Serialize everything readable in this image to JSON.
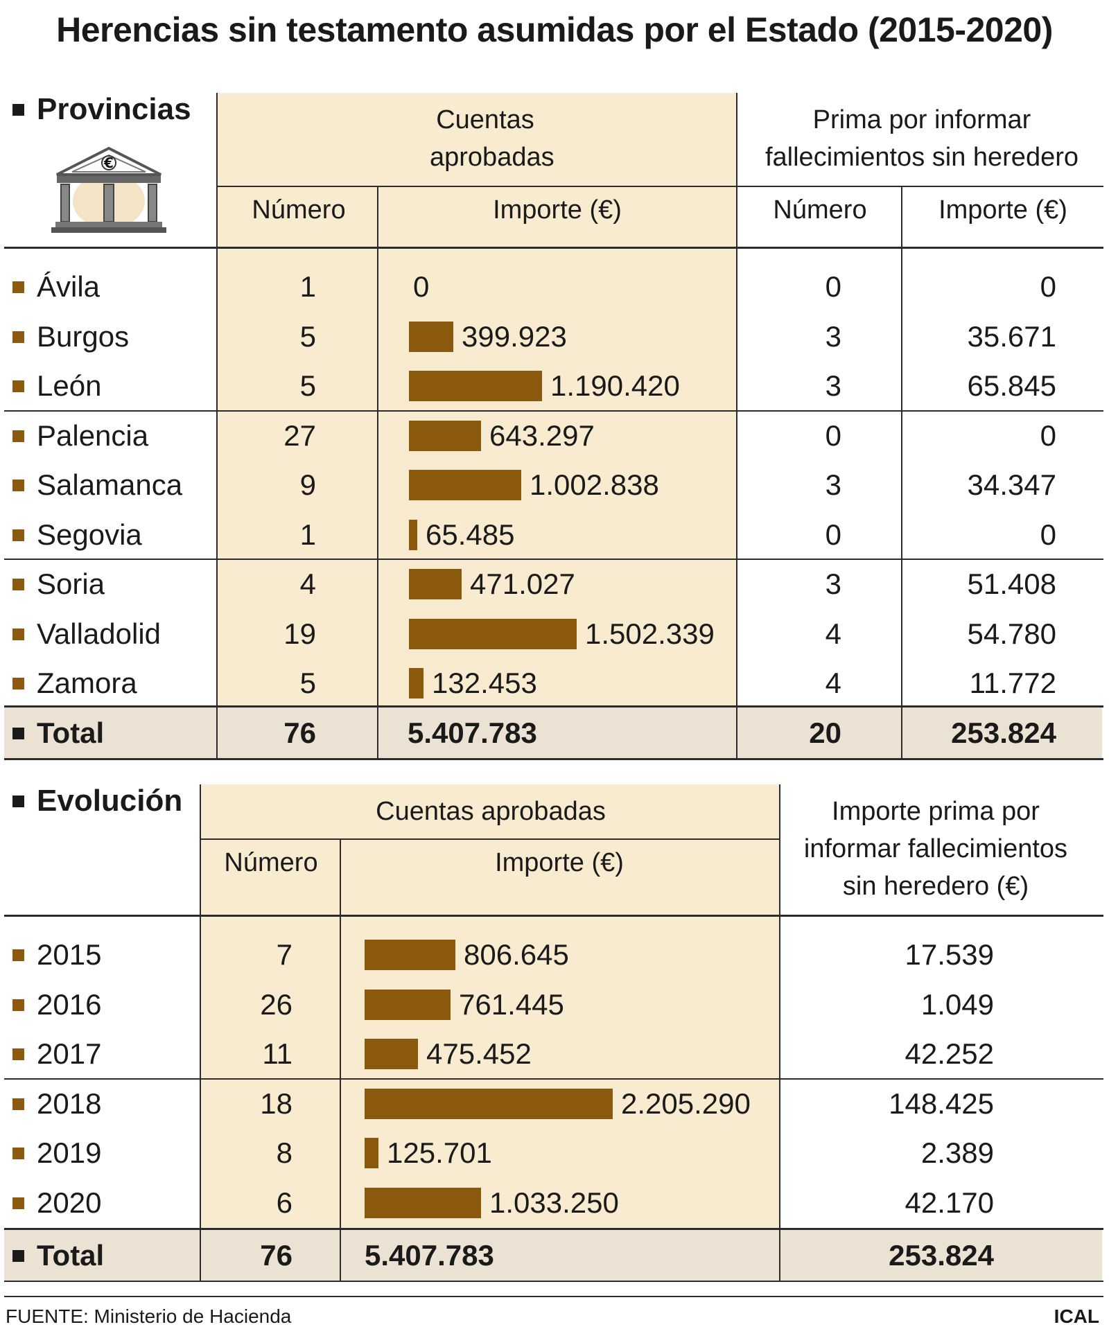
{
  "title": "Herencias sin testamento asumidas por el Estado (2015-2020)",
  "colors": {
    "bar": "#8b5a0f",
    "band": "#f8ebcf",
    "total_band": "#ebe2d3"
  },
  "provincias": {
    "section_label": "Provincias",
    "icon": "bank-euro-icon",
    "group1": "Cuentas aprobadas",
    "group2": "Prima por informar fallecimientos sin heredero",
    "col_numero": "Número",
    "col_importe": "Importe (€)",
    "rows": [
      {
        "name": "Ávila",
        "num": "1",
        "imp": "0",
        "prima_num": "0",
        "prima_imp": "0"
      },
      {
        "name": "Burgos",
        "num": "5",
        "imp": "399.923",
        "prima_num": "3",
        "prima_imp": "35.671"
      },
      {
        "name": "León",
        "num": "5",
        "imp": "1.190.420",
        "prima_num": "3",
        "prima_imp": "65.845"
      },
      {
        "name": "Palencia",
        "num": "27",
        "imp": "643.297",
        "prima_num": "0",
        "prima_imp": "0"
      },
      {
        "name": "Salamanca",
        "num": "9",
        "imp": "1.002.838",
        "prima_num": "3",
        "prima_imp": "34.347"
      },
      {
        "name": "Segovia",
        "num": "1",
        "imp": "65.485",
        "prima_num": "0",
        "prima_imp": "0"
      },
      {
        "name": "Soria",
        "num": "4",
        "imp": "471.027",
        "prima_num": "3",
        "prima_imp": "51.408"
      },
      {
        "name": "Valladolid",
        "num": "19",
        "imp": "1.502.339",
        "prima_num": "4",
        "prima_imp": "54.780"
      },
      {
        "name": "Zamora",
        "num": "5",
        "imp": "132.453",
        "prima_num": "4",
        "prima_imp": "11.772"
      }
    ],
    "total": {
      "label": "Total",
      "num": "76",
      "imp": "5.407.783",
      "prima_num": "20",
      "prima_imp": "253.824"
    }
  },
  "evolucion": {
    "section_label": "Evolución",
    "group1": "Cuentas aprobadas",
    "group2": "Importe prima por informar fallecimientos sin heredero (€)",
    "col_numero": "Número",
    "col_importe": "Importe (€)",
    "rows": [
      {
        "year": "2015",
        "num": "7",
        "imp": "806.645",
        "prima": "17.539"
      },
      {
        "year": "2016",
        "num": "26",
        "imp": "761.445",
        "prima": "1.049"
      },
      {
        "year": "2017",
        "num": "11",
        "imp": "475.452",
        "prima": "42.252"
      },
      {
        "year": "2018",
        "num": "18",
        "imp": "2.205.290",
        "prima": "148.425"
      },
      {
        "year": "2019",
        "num": "8",
        "imp": "125.701",
        "prima": "2.389"
      },
      {
        "year": "2020",
        "num": "6",
        "imp": "1.033.250",
        "prima": "42.170"
      }
    ],
    "total": {
      "label": "Total",
      "num": "76",
      "imp": "5.407.783",
      "prima": "253.824"
    }
  },
  "footer": {
    "source": "FUENTE: Ministerio de Hacienda",
    "brand": "ICAL"
  },
  "chart_data": [
    {
      "type": "bar",
      "title": "Cuentas aprobadas por provincia — Importe (€)",
      "categories": [
        "Ávila",
        "Burgos",
        "León",
        "Palencia",
        "Salamanca",
        "Segovia",
        "Soria",
        "Valladolid",
        "Zamora"
      ],
      "values": [
        0,
        399923,
        1190420,
        643297,
        1002838,
        65485,
        471027,
        1502339,
        132453
      ],
      "orientation": "horizontal"
    },
    {
      "type": "bar",
      "title": "Cuentas aprobadas por año — Importe (€)",
      "categories": [
        "2015",
        "2016",
        "2017",
        "2018",
        "2019",
        "2020"
      ],
      "values": [
        806645,
        761445,
        475452,
        2205290,
        125701,
        1033250
      ],
      "orientation": "horizontal"
    }
  ]
}
